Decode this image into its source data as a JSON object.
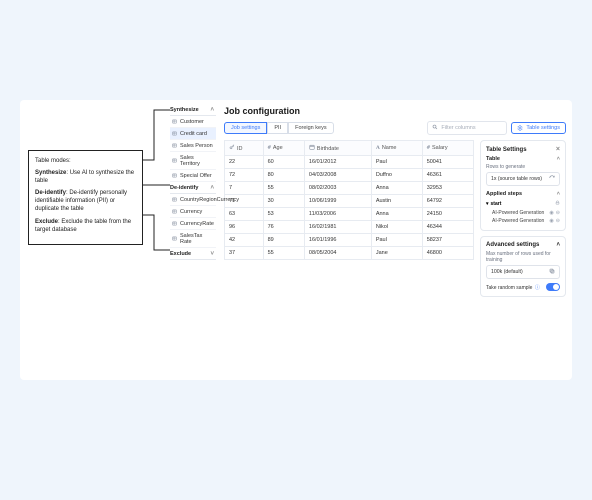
{
  "callout": {
    "title": "Table modes:",
    "items": [
      {
        "term": "Synthesize",
        "desc": ": Use AI to synthesize the table"
      },
      {
        "term": "De-identify",
        "desc": ": De-identify personally identifiable information (PII) or duplicate the table"
      },
      {
        "term": "Exclude",
        "desc": ": Exclude the table from the target database"
      }
    ]
  },
  "modes": {
    "groups": [
      {
        "name": "Synthesize",
        "items": [
          {
            "icon": "table",
            "label": "Customer"
          },
          {
            "icon": "table",
            "label": "Credit card",
            "selected": true
          },
          {
            "icon": "table",
            "label": "Sales Person"
          },
          {
            "icon": "table",
            "label": "Sales Territory"
          },
          {
            "icon": "table",
            "label": "Special Offer"
          }
        ]
      },
      {
        "name": "De-identify",
        "items": [
          {
            "icon": "table",
            "label": "CountryRegionCurrency"
          },
          {
            "icon": "table",
            "label": "Currency"
          },
          {
            "icon": "table",
            "label": "CurrencyRate"
          },
          {
            "icon": "table",
            "label": "SalesTax Rate"
          }
        ]
      },
      {
        "name": "Exclude",
        "items": []
      }
    ]
  },
  "page": {
    "title": "Job configuration"
  },
  "tabs": [
    {
      "label": "Job settings",
      "active": true
    },
    {
      "label": "PII",
      "active": false
    },
    {
      "label": "Foreign keys",
      "active": false
    }
  ],
  "search": {
    "placeholder": "Filter columns"
  },
  "buttons": {
    "table_settings": "Table settings"
  },
  "table": {
    "columns": [
      {
        "icon": "key",
        "label": "ID"
      },
      {
        "icon": "num",
        "label": "Age"
      },
      {
        "icon": "cal",
        "label": "Birthdate"
      },
      {
        "icon": "txt",
        "label": "Name"
      },
      {
        "icon": "num",
        "label": "Salary"
      }
    ],
    "rows": [
      [
        "22",
        "60",
        "16/01/2012",
        "Paul",
        "50041"
      ],
      [
        "72",
        "80",
        "04/03/2008",
        "Duffno",
        "46361"
      ],
      [
        "7",
        "55",
        "08/02/2003",
        "Anna",
        "32953"
      ],
      [
        "71",
        "30",
        "10/06/1999",
        "Austin",
        "64792"
      ],
      [
        "63",
        "53",
        "11/03/2006",
        "Anna",
        "24150"
      ],
      [
        "96",
        "76",
        "16/02/1981",
        "Nikol",
        "46344"
      ],
      [
        "42",
        "89",
        "16/01/1996",
        "Paul",
        "58237"
      ],
      [
        "37",
        "55",
        "08/05/2004",
        "Jane",
        "46800"
      ]
    ]
  },
  "side": {
    "title": "Table Settings",
    "section_table": {
      "title": "Table",
      "rows_label": "Rows to generate",
      "rows_select": "1x (source table rows)"
    },
    "section_steps": {
      "title": "Applied steps",
      "root": "start",
      "items": [
        "AI-Powered Generation",
        "AI-Powered Generation"
      ]
    },
    "section_adv": {
      "title": "Advanced settings",
      "max_label": "Max number of rows used for training",
      "max_select": "100k (default)",
      "toggle_label": "Take random sample"
    }
  },
  "colors": {
    "page_bg": "#eff5fc",
    "panel_bg": "#ffffff",
    "border": "#e4e8ee",
    "accent": "#3e7bfa",
    "text": "#222222",
    "muted": "#8a93a2"
  }
}
